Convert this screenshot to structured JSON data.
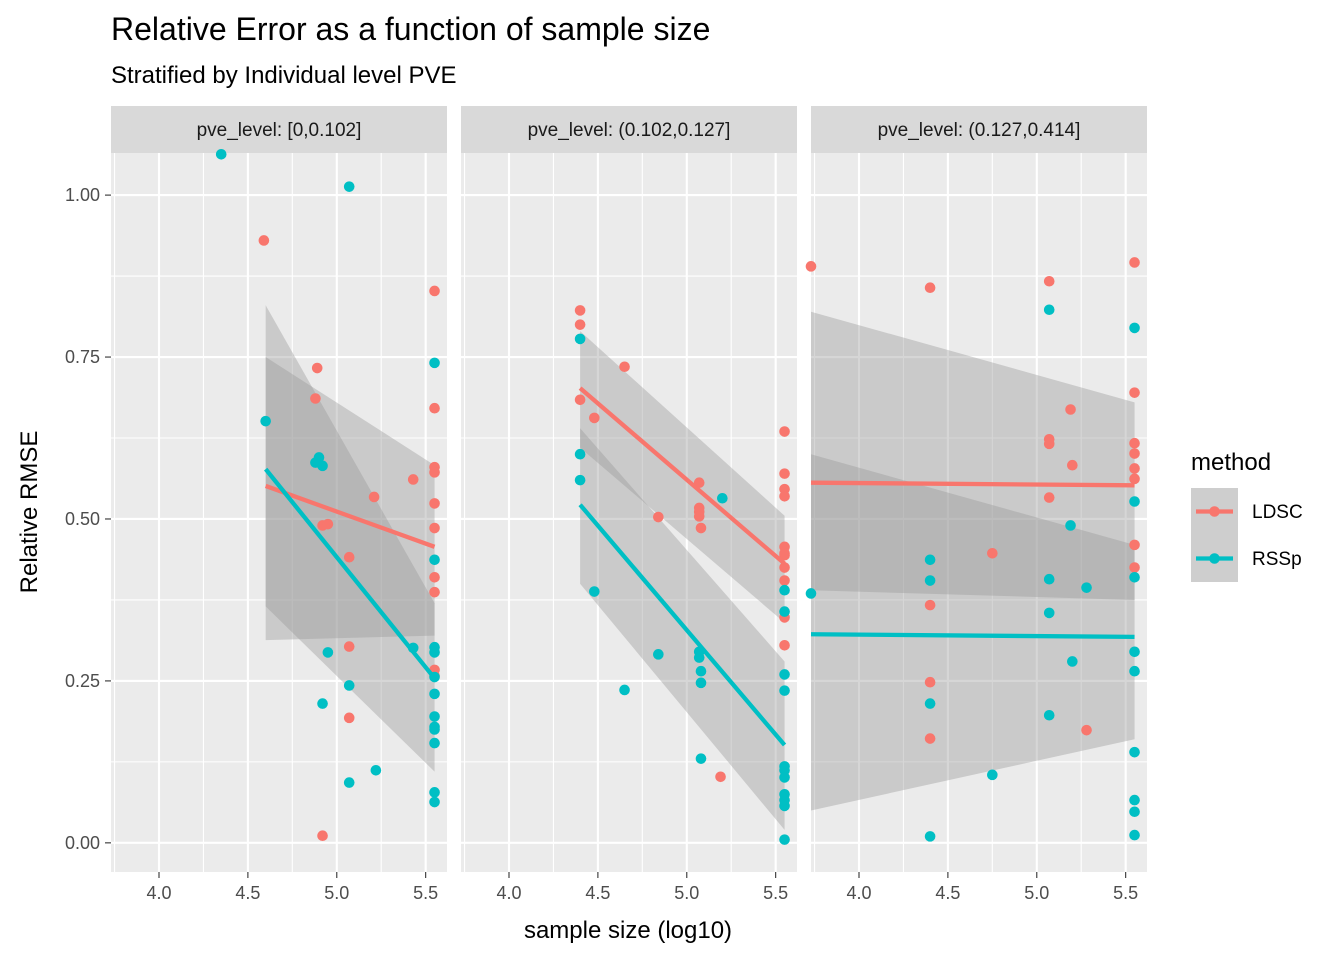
{
  "colors": {
    "LDSC": "#F8766D",
    "RSSp": "#00BFC4",
    "panel_bg": "#EBEBEB",
    "strip_bg": "#D9D9D9",
    "ribbon": "#999999"
  },
  "chart_data": {
    "type": "scatter",
    "title": "Relative Error as a function of sample size",
    "subtitle": "Stratified by Individual level PVE",
    "xlabel": "sample size (log10)",
    "ylabel": "Relative RMSE",
    "xlim": [
      3.73,
      5.62
    ],
    "ylim": [
      -0.045,
      1.065
    ],
    "x_ticks": [
      4.0,
      4.5,
      5.0,
      5.5
    ],
    "x_tick_labels": [
      "4.0",
      "4.5",
      "5.0",
      "5.5"
    ],
    "y_ticks": [
      0.0,
      0.25,
      0.5,
      0.75,
      1.0
    ],
    "y_tick_labels": [
      "0.00",
      "0.25",
      "0.50",
      "0.75",
      "1.00"
    ],
    "grid": true,
    "legend": {
      "title": "method",
      "position": "right",
      "entries": [
        "LDSC",
        "RSSp"
      ]
    },
    "panels": [
      {
        "strip": "pve_level: [0,0.102]",
        "series": [
          {
            "name": "LDSC",
            "points": [
              [
                4.59,
                0.93
              ],
              [
                4.89,
                0.733
              ],
              [
                4.88,
                0.686
              ],
              [
                4.92,
                0.49
              ],
              [
                4.95,
                0.492
              ],
              [
                5.07,
                0.441
              ],
              [
                5.07,
                0.303
              ],
              [
                5.07,
                0.193
              ],
              [
                4.92,
                0.011
              ],
              [
                5.21,
                0.534
              ],
              [
                5.43,
                0.561
              ],
              [
                5.55,
                0.852
              ],
              [
                5.55,
                0.671
              ],
              [
                5.55,
                0.58
              ],
              [
                5.55,
                0.572
              ],
              [
                5.55,
                0.524
              ],
              [
                5.55,
                0.486
              ],
              [
                5.55,
                0.41
              ],
              [
                5.55,
                0.387
              ],
              [
                5.55,
                0.267
              ],
              [
                5.55,
                0.258
              ]
            ],
            "fit": {
              "x": [
                4.6,
                5.55
              ],
              "y": [
                0.551,
                0.457
              ],
              "lo": [
                0.313,
                0.32
              ],
              "hi": [
                0.75,
                0.583
              ]
            }
          },
          {
            "name": "RSSp",
            "points": [
              [
                4.35,
                1.063
              ],
              [
                4.6,
                0.651
              ],
              [
                4.88,
                0.587
              ],
              [
                4.9,
                0.595
              ],
              [
                4.92,
                0.582
              ],
              [
                5.07,
                1.013
              ],
              [
                4.95,
                0.294
              ],
              [
                4.92,
                0.215
              ],
              [
                5.07,
                0.243
              ],
              [
                5.07,
                0.093
              ],
              [
                5.22,
                0.112
              ],
              [
                5.43,
                0.301
              ],
              [
                5.55,
                0.741
              ],
              [
                5.55,
                0.437
              ],
              [
                5.55,
                0.302
              ],
              [
                5.55,
                0.294
              ],
              [
                5.55,
                0.256
              ],
              [
                5.55,
                0.23
              ],
              [
                5.55,
                0.195
              ],
              [
                5.55,
                0.179
              ],
              [
                5.55,
                0.175
              ],
              [
                5.55,
                0.154
              ],
              [
                5.55,
                0.078
              ],
              [
                5.55,
                0.063
              ]
            ],
            "fit": {
              "x": [
                4.6,
                5.55
              ],
              "y": [
                0.577,
                0.254
              ],
              "lo": [
                0.365,
                0.11
              ],
              "hi": [
                0.83,
                0.37
              ]
            }
          }
        ]
      },
      {
        "strip": "pve_level: (0.102,0.127]",
        "series": [
          {
            "name": "LDSC",
            "points": [
              [
                4.4,
                0.822
              ],
              [
                4.4,
                0.8
              ],
              [
                4.4,
                0.684
              ],
              [
                4.48,
                0.656
              ],
              [
                4.65,
                0.735
              ],
              [
                4.84,
                0.503
              ],
              [
                5.07,
                0.556
              ],
              [
                5.07,
                0.517
              ],
              [
                5.07,
                0.511
              ],
              [
                5.07,
                0.504
              ],
              [
                5.08,
                0.486
              ],
              [
                5.19,
                0.102
              ],
              [
                5.55,
                0.635
              ],
              [
                5.55,
                0.57
              ],
              [
                5.55,
                0.546
              ],
              [
                5.55,
                0.535
              ],
              [
                5.55,
                0.457
              ],
              [
                5.55,
                0.444
              ],
              [
                5.55,
                0.447
              ],
              [
                5.55,
                0.425
              ],
              [
                5.55,
                0.405
              ],
              [
                5.55,
                0.348
              ],
              [
                5.55,
                0.305
              ]
            ],
            "fit": {
              "x": [
                4.4,
                5.55
              ],
              "y": [
                0.702,
                0.431
              ],
              "lo": [
                0.61,
                0.34
              ],
              "hi": [
                0.79,
                0.505
              ]
            }
          },
          {
            "name": "RSSp",
            "points": [
              [
                4.4,
                0.778
              ],
              [
                4.4,
                0.6
              ],
              [
                4.4,
                0.56
              ],
              [
                4.48,
                0.388
              ],
              [
                4.65,
                0.236
              ],
              [
                4.84,
                0.291
              ],
              [
                5.07,
                0.295
              ],
              [
                5.07,
                0.286
              ],
              [
                5.08,
                0.265
              ],
              [
                5.08,
                0.247
              ],
              [
                5.08,
                0.13
              ],
              [
                5.2,
                0.532
              ],
              [
                5.55,
                0.39
              ],
              [
                5.55,
                0.357
              ],
              [
                5.55,
                0.26
              ],
              [
                5.55,
                0.235
              ],
              [
                5.55,
                0.118
              ],
              [
                5.55,
                0.112
              ],
              [
                5.55,
                0.101
              ],
              [
                5.55,
                0.075
              ],
              [
                5.55,
                0.066
              ],
              [
                5.55,
                0.057
              ],
              [
                5.55,
                0.005
              ]
            ],
            "fit": {
              "x": [
                4.4,
                5.55
              ],
              "y": [
                0.522,
                0.151
              ],
              "lo": [
                0.4,
                0.02
              ],
              "hi": [
                0.64,
                0.28
              ]
            }
          }
        ]
      },
      {
        "strip": "pve_level: (0.127,0.414]",
        "series": [
          {
            "name": "LDSC",
            "points": [
              [
                3.73,
                0.89
              ],
              [
                4.4,
                0.857
              ],
              [
                4.4,
                0.367
              ],
              [
                4.4,
                0.248
              ],
              [
                4.4,
                0.161
              ],
              [
                4.75,
                0.447
              ],
              [
                5.07,
                0.867
              ],
              [
                5.07,
                0.623
              ],
              [
                5.07,
                0.616
              ],
              [
                5.07,
                0.533
              ],
              [
                5.19,
                0.669
              ],
              [
                5.2,
                0.583
              ],
              [
                5.28,
                0.174
              ],
              [
                5.55,
                0.896
              ],
              [
                5.55,
                0.695
              ],
              [
                5.55,
                0.617
              ],
              [
                5.55,
                0.601
              ],
              [
                5.55,
                0.578
              ],
              [
                5.55,
                0.562
              ],
              [
                5.55,
                0.46
              ],
              [
                5.55,
                0.425
              ]
            ],
            "fit": {
              "x": [
                3.73,
                5.55
              ],
              "y": [
                0.556,
                0.552
              ],
              "lo": [
                0.39,
                0.375
              ],
              "hi": [
                0.82,
                0.68
              ]
            }
          },
          {
            "name": "RSSp",
            "points": [
              [
                3.73,
                0.385
              ],
              [
                4.4,
                0.437
              ],
              [
                4.4,
                0.405
              ],
              [
                4.4,
                0.215
              ],
              [
                4.4,
                0.01
              ],
              [
                4.75,
                0.105
              ],
              [
                5.07,
                0.823
              ],
              [
                5.07,
                0.407
              ],
              [
                5.07,
                0.355
              ],
              [
                5.07,
                0.197
              ],
              [
                5.19,
                0.49
              ],
              [
                5.2,
                0.28
              ],
              [
                5.28,
                0.394
              ],
              [
                5.55,
                0.795
              ],
              [
                5.55,
                0.527
              ],
              [
                5.55,
                0.41
              ],
              [
                5.55,
                0.295
              ],
              [
                5.55,
                0.265
              ],
              [
                5.55,
                0.14
              ],
              [
                5.55,
                0.066
              ],
              [
                5.55,
                0.048
              ],
              [
                5.55,
                0.012
              ]
            ],
            "fit": {
              "x": [
                3.73,
                5.55
              ],
              "y": [
                0.322,
                0.318
              ],
              "lo": [
                0.05,
                0.16
              ],
              "hi": [
                0.6,
                0.46
              ]
            }
          }
        ]
      }
    ]
  }
}
